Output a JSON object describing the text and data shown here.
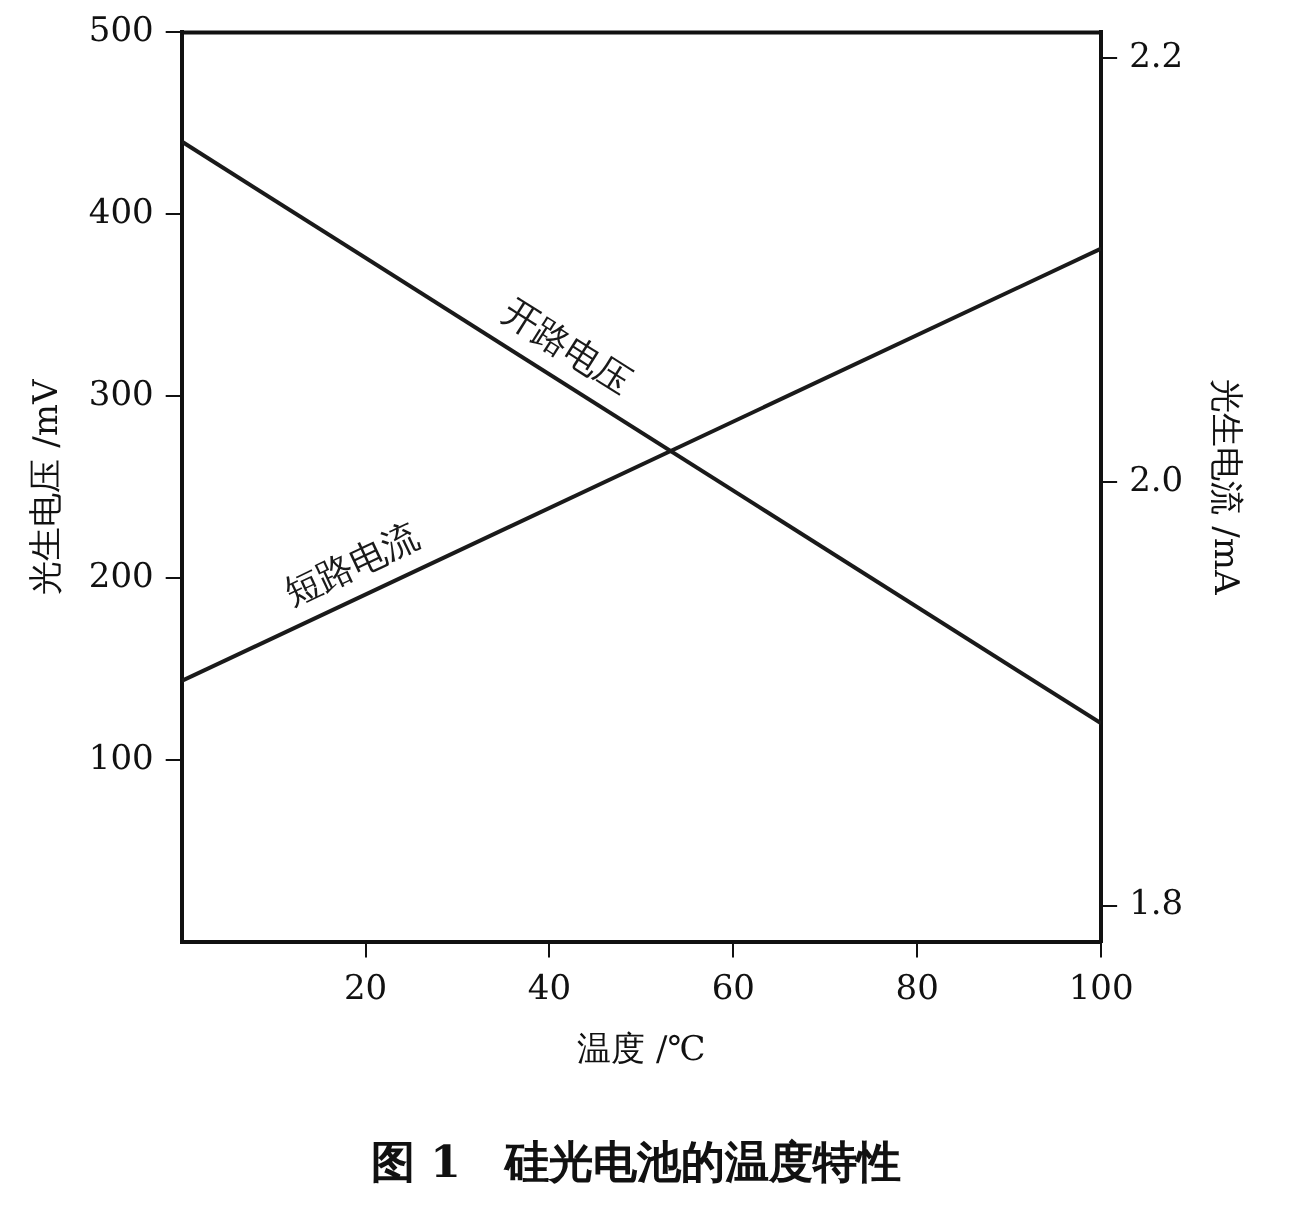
{
  "chart_data": {
    "type": "line",
    "title": "图 1　硅光电池的温度特性",
    "xlabel": "温度 /℃",
    "ylabel": "光生电压 /mV",
    "y2label": "光生电流 /mA",
    "x": [
      0,
      100
    ],
    "xlim": [
      0,
      100
    ],
    "xticks": [
      20,
      40,
      60,
      80,
      100
    ],
    "ylim": [
      0,
      500
    ],
    "yticks": [
      100,
      200,
      300,
      400,
      500
    ],
    "y2lim": [
      1.783,
      2.212
    ],
    "y2ticks": [
      1.8,
      {
        "value": 2,
        "label": "2.0"
      },
      2.2
    ],
    "series": [
      {
        "name": "开路电压",
        "color": "#1a1a1a",
        "values": [
          440,
          120
        ]
      },
      {
        "name": "短路电流",
        "color": "#1a1a1a",
        "values": [
          1.906,
          2.11
        ],
        "axis": "y2"
      }
    ],
    "grid": false,
    "legend": false,
    "marker": "none",
    "line_style": "solid"
  }
}
